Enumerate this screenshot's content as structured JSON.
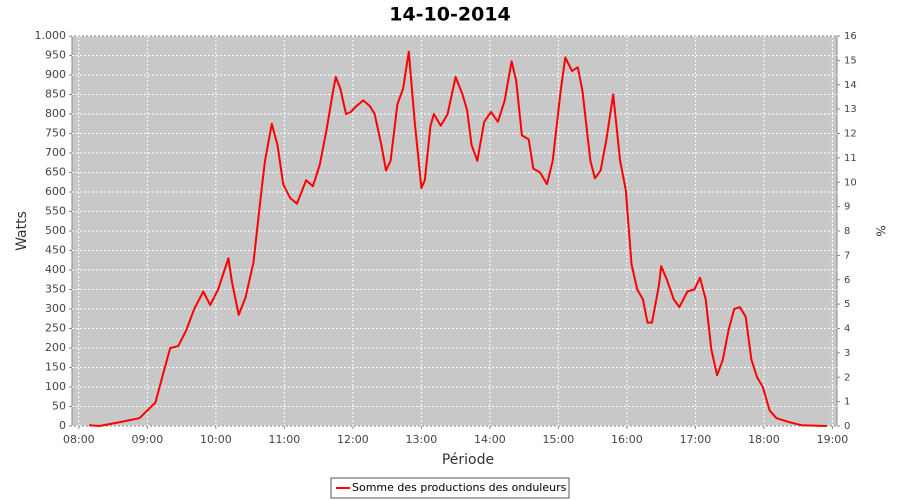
{
  "chart_data": {
    "type": "line",
    "title": "14-10-2014",
    "x_label": "Période",
    "y_label": "Watts",
    "y2_label": "%",
    "x": [
      "08:09",
      "08:18",
      "08:36",
      "08:53",
      "09:00",
      "09:07",
      "09:13",
      "09:20",
      "09:27",
      "09:34",
      "09:41",
      "09:49",
      "09:55",
      "10:02",
      "10:11",
      "10:14",
      "10:20",
      "10:26",
      "10:33",
      "10:39",
      "10:43",
      "10:49",
      "10:54",
      "10:59",
      "11:05",
      "11:11",
      "11:19",
      "11:25",
      "11:31",
      "11:37",
      "11:43",
      "11:45",
      "11:49",
      "11:54",
      "11:58",
      "12:03",
      "12:09",
      "12:15",
      "12:19",
      "12:25",
      "12:29",
      "12:33",
      "12:39",
      "12:44",
      "12:49",
      "12:54",
      "13:00",
      "13:03",
      "13:08",
      "13:11",
      "13:17",
      "13:23",
      "13:30",
      "13:36",
      "13:40",
      "13:44",
      "13:49",
      "13:55",
      "14:01",
      "14:07",
      "14:13",
      "14:19",
      "14:23",
      "14:28",
      "14:34",
      "14:38",
      "14:44",
      "14:50",
      "14:55",
      "15:02",
      "15:06",
      "15:12",
      "15:17",
      "15:21",
      "15:28",
      "15:32",
      "15:37",
      "15:42",
      "15:48",
      "15:54",
      "15:59",
      "16:04",
      "16:09",
      "16:14",
      "16:18",
      "16:22",
      "16:28",
      "16:30",
      "16:35",
      "16:41",
      "16:46",
      "16:53",
      "16:59",
      "17:04",
      "17:09",
      "17:14",
      "17:19",
      "17:24",
      "17:29",
      "17:34",
      "17:39",
      "17:44",
      "17:49",
      "17:54",
      "17:59",
      "18:05",
      "18:11",
      "18:22",
      "18:33",
      "18:55"
    ],
    "series": [
      {
        "name": "Somme des productions des onduleurs",
        "color": "#ff0000",
        "values": [
          2,
          0,
          10,
          20,
          40,
          60,
          125,
          200,
          205,
          245,
          300,
          345,
          310,
          350,
          430,
          370,
          285,
          330,
          420,
          580,
          680,
          775,
          720,
          620,
          585,
          570,
          630,
          615,
          670,
          760,
          865,
          895,
          865,
          800,
          805,
          820,
          835,
          820,
          800,
          720,
          655,
          680,
          825,
          865,
          960,
          785,
          610,
          630,
          770,
          800,
          770,
          800,
          895,
          850,
          810,
          720,
          680,
          780,
          805,
          780,
          835,
          935,
          885,
          745,
          735,
          660,
          650,
          620,
          680,
          860,
          945,
          910,
          920,
          860,
          680,
          635,
          655,
          735,
          850,
          680,
          605,
          415,
          350,
          325,
          265,
          265,
          360,
          410,
          375,
          325,
          305,
          345,
          350,
          380,
          325,
          195,
          130,
          170,
          245,
          300,
          305,
          280,
          170,
          125,
          100,
          40,
          20,
          10,
          2,
          0
        ]
      }
    ],
    "xlim": [
      "07:54",
      "19:04"
    ],
    "xticks": [
      "08:00",
      "09:00",
      "10:00",
      "11:00",
      "12:00",
      "13:00",
      "14:00",
      "15:00",
      "16:00",
      "17:00",
      "18:00",
      "19:00"
    ],
    "ylim": [
      0,
      1000
    ],
    "yticks": [
      0,
      50,
      100,
      150,
      200,
      250,
      300,
      350,
      400,
      450,
      500,
      550,
      600,
      650,
      700,
      750,
      800,
      850,
      900,
      950,
      {
        "value": 1000,
        "label": "1.000"
      }
    ],
    "y2lim": [
      0,
      16
    ],
    "y2ticks": [
      0,
      1,
      2,
      3,
      4,
      5,
      6,
      7,
      8,
      9,
      10,
      11,
      12,
      13,
      14,
      15,
      16
    ],
    "grid": true,
    "legend": "bottom"
  }
}
